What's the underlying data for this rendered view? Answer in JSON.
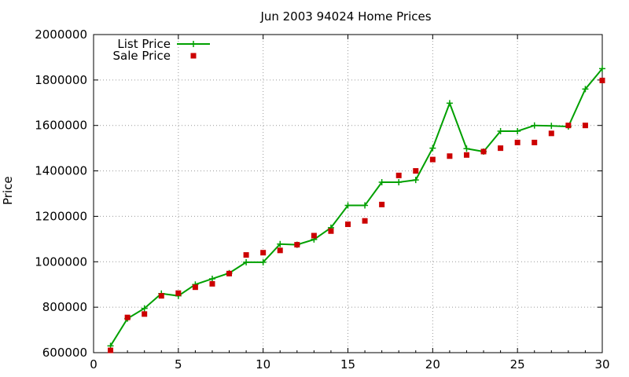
{
  "chart_data": {
    "type": "line",
    "title": "Jun 2003 94024 Home Prices",
    "xlabel": "",
    "ylabel": "Price",
    "xlim": [
      0,
      30
    ],
    "ylim": [
      600000,
      2000000
    ],
    "xticks": [
      "0",
      "5",
      "10",
      "15",
      "20",
      "25",
      "30"
    ],
    "yticks": [
      "600000",
      "800000",
      "1000000",
      "1200000",
      "1400000",
      "1600000",
      "1800000",
      "2000000"
    ],
    "grid": true,
    "legend": "top-left",
    "x": [
      1,
      2,
      3,
      4,
      5,
      6,
      7,
      8,
      9,
      10,
      11,
      12,
      13,
      14,
      15,
      16,
      17,
      18,
      19,
      20,
      21,
      22,
      23,
      24,
      25,
      26,
      27,
      28,
      29,
      30
    ],
    "series": [
      {
        "name": "List Price",
        "style": "line-with-plus-markers",
        "color": "#00a000",
        "values": [
          630000,
          750000,
          795000,
          860000,
          850000,
          900000,
          925000,
          950000,
          998000,
          998000,
          1078000,
          1075000,
          1098000,
          1150000,
          1248000,
          1248000,
          1350000,
          1350000,
          1360000,
          1500000,
          1698000,
          1498000,
          1485000,
          1575000,
          1575000,
          1600000,
          1598000,
          1595000,
          1760000,
          1850000
        ]
      },
      {
        "name": "Sale Price",
        "style": "square-markers",
        "color": "#cc0000",
        "values": [
          610000,
          755000,
          770000,
          850000,
          862000,
          888000,
          903000,
          948000,
          1030000,
          1040000,
          1050000,
          1075000,
          1115000,
          1135000,
          1165000,
          1180000,
          1252000,
          1380000,
          1400000,
          1450000,
          1465000,
          1470000,
          1485000,
          1500000,
          1525000,
          1525000,
          1565000,
          1600000,
          1600000,
          1798000
        ]
      }
    ]
  }
}
